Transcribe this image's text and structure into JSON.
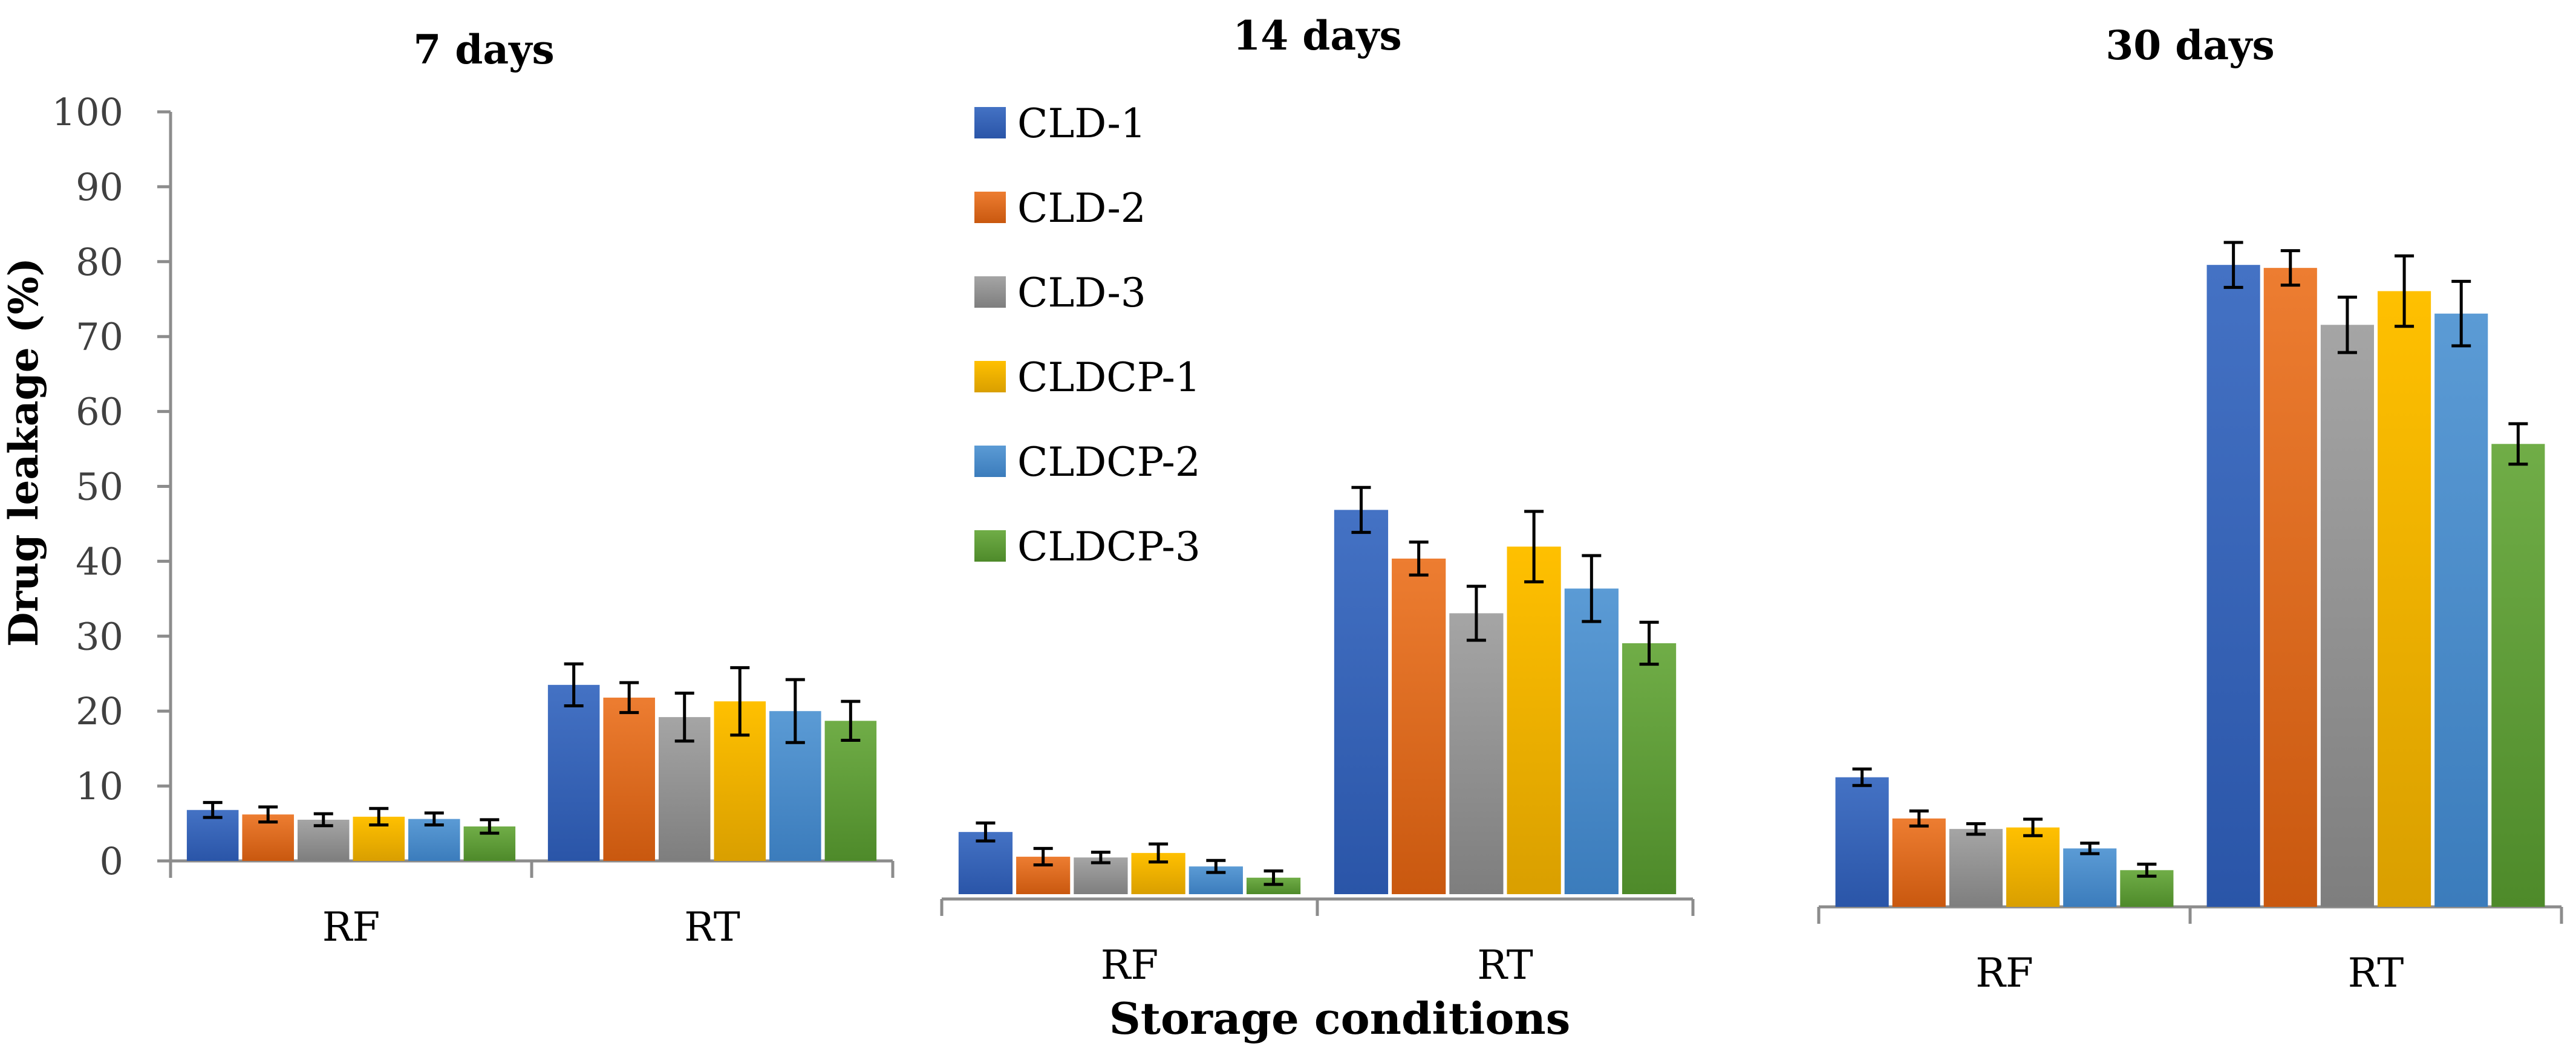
{
  "chart_data": [
    {
      "type": "bar",
      "title": "7 days",
      "categories": [
        "RF",
        "RT"
      ],
      "ylim": [
        0,
        100
      ],
      "yticks": [
        0,
        10,
        20,
        30,
        40,
        50,
        60,
        70,
        80,
        90,
        100
      ],
      "ylabel": "Drug leakage (%)",
      "series": [
        {
          "name": "CLD-1",
          "values": [
            6.8,
            23.5
          ],
          "errors": [
            1.0,
            2.8
          ]
        },
        {
          "name": "CLD-2",
          "values": [
            6.2,
            21.8
          ],
          "errors": [
            1.0,
            2.0
          ]
        },
        {
          "name": "CLD-3",
          "values": [
            5.5,
            19.2
          ],
          "errors": [
            0.8,
            3.2
          ]
        },
        {
          "name": "CLDCP-1",
          "values": [
            5.9,
            21.3
          ],
          "errors": [
            1.1,
            4.5
          ]
        },
        {
          "name": "CLDCP-2",
          "values": [
            5.6,
            20.0
          ],
          "errors": [
            0.8,
            4.2
          ]
        },
        {
          "name": "CLDCP-3",
          "values": [
            4.6,
            18.7
          ],
          "errors": [
            0.9,
            2.6
          ]
        }
      ]
    },
    {
      "type": "bar",
      "title": "14 days",
      "categories": [
        "RF",
        "RT"
      ],
      "ylim": [
        0,
        100
      ],
      "series": [
        {
          "name": "CLD-1",
          "values": [
            8.3,
            51.3
          ],
          "errors": [
            1.2,
            3.0
          ]
        },
        {
          "name": "CLD-2",
          "values": [
            5.0,
            44.8
          ],
          "errors": [
            1.1,
            2.2
          ]
        },
        {
          "name": "CLD-3",
          "values": [
            4.9,
            37.5
          ],
          "errors": [
            0.7,
            3.6
          ]
        },
        {
          "name": "CLDCP-1",
          "values": [
            5.5,
            46.4
          ],
          "errors": [
            1.2,
            4.7
          ]
        },
        {
          "name": "CLDCP-2",
          "values": [
            3.7,
            40.8
          ],
          "errors": [
            0.8,
            4.4
          ]
        },
        {
          "name": "CLDCP-3",
          "values": [
            2.2,
            33.5
          ],
          "errors": [
            0.9,
            2.8
          ]
        }
      ]
    },
    {
      "type": "bar",
      "title": "30 days",
      "categories": [
        "RF",
        "RT"
      ],
      "ylim": [
        0,
        100
      ],
      "series": [
        {
          "name": "CLD-1",
          "values": [
            17.3,
            85.7
          ],
          "errors": [
            1.1,
            3.0
          ]
        },
        {
          "name": "CLD-2",
          "values": [
            11.8,
            85.3
          ],
          "errors": [
            1.0,
            2.3
          ]
        },
        {
          "name": "CLD-3",
          "values": [
            10.4,
            77.7
          ],
          "errors": [
            0.7,
            3.7
          ]
        },
        {
          "name": "CLDCP-1",
          "values": [
            10.6,
            82.2
          ],
          "errors": [
            1.1,
            4.7
          ]
        },
        {
          "name": "CLDCP-2",
          "values": [
            7.8,
            79.2
          ],
          "errors": [
            0.7,
            4.3
          ]
        },
        {
          "name": "CLDCP-3",
          "values": [
            4.9,
            61.8
          ],
          "errors": [
            0.8,
            2.7
          ]
        }
      ]
    }
  ],
  "shared": {
    "xlabel": "Storage conditions",
    "ylabel": "Drug leakage (%)",
    "legend_position": "top-center",
    "colors": [
      "#4472C4",
      "#ED7D31",
      "#A5A5A5",
      "#FFC000",
      "#5B9BD5",
      "#70AD47"
    ],
    "dark_colors": [
      "#2A55A8",
      "#C9580F",
      "#7E7E7E",
      "#D99F00",
      "#3B7CBC",
      "#4E8A2A"
    ]
  }
}
